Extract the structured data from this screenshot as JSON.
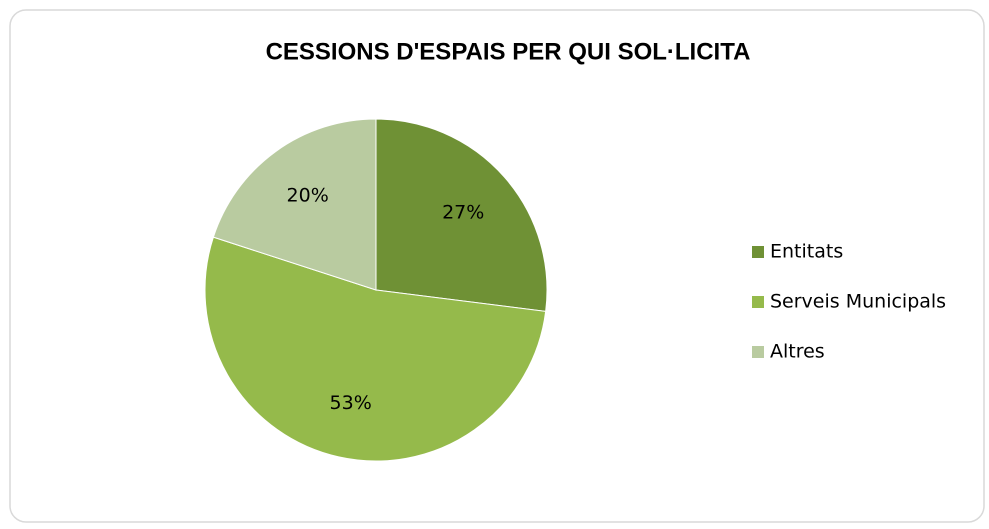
{
  "chart_data": {
    "type": "pie",
    "title": "CESSIONS D'ESPAIS PER QUI SOL·LICITA",
    "categories": [
      "Entitats",
      "Serveis Municipals",
      "Altres"
    ],
    "values": [
      27,
      53,
      20
    ],
    "value_labels": [
      "27%",
      "53%",
      "20%"
    ],
    "colors": [
      "#6f9135",
      "#95ba4b",
      "#b9cba0"
    ],
    "legend": "right"
  }
}
